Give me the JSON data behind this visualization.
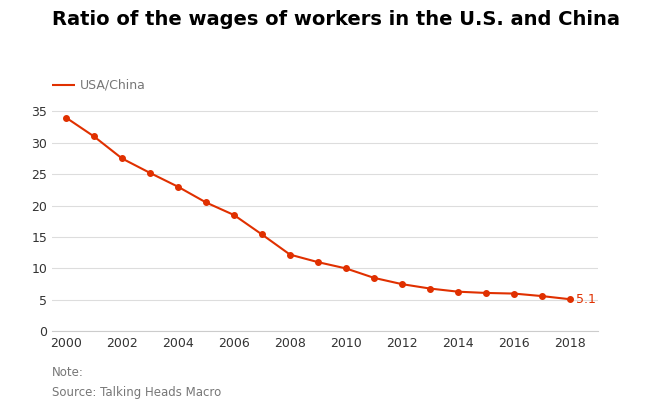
{
  "title": "Ratio of the wages of workers in the U.S. and China",
  "legend_label": "USA/China",
  "note": "Note:",
  "source": "Source: Talking Heads Macro",
  "line_color": "#e03000",
  "marker_color": "#e03000",
  "background_color": "#ffffff",
  "years": [
    2000,
    2001,
    2002,
    2003,
    2004,
    2005,
    2006,
    2007,
    2008,
    2009,
    2010,
    2011,
    2012,
    2013,
    2014,
    2015,
    2016,
    2017,
    2018
  ],
  "values": [
    34.0,
    31.0,
    27.5,
    25.2,
    23.0,
    20.5,
    18.5,
    15.4,
    12.2,
    11.0,
    10.0,
    8.5,
    7.5,
    6.8,
    6.3,
    6.1,
    6.0,
    5.6,
    5.1
  ],
  "ylim": [
    0,
    36
  ],
  "yticks": [
    0,
    5,
    10,
    15,
    20,
    25,
    30,
    35
  ],
  "xticks": [
    2000,
    2002,
    2004,
    2006,
    2008,
    2010,
    2012,
    2014,
    2016,
    2018
  ],
  "end_label": "5.1",
  "title_fontsize": 14,
  "legend_fontsize": 9,
  "tick_fontsize": 9,
  "note_fontsize": 8.5,
  "grid_color": "#dddddd",
  "spine_color": "#cccccc",
  "text_color": "#333333",
  "note_color": "#777777"
}
